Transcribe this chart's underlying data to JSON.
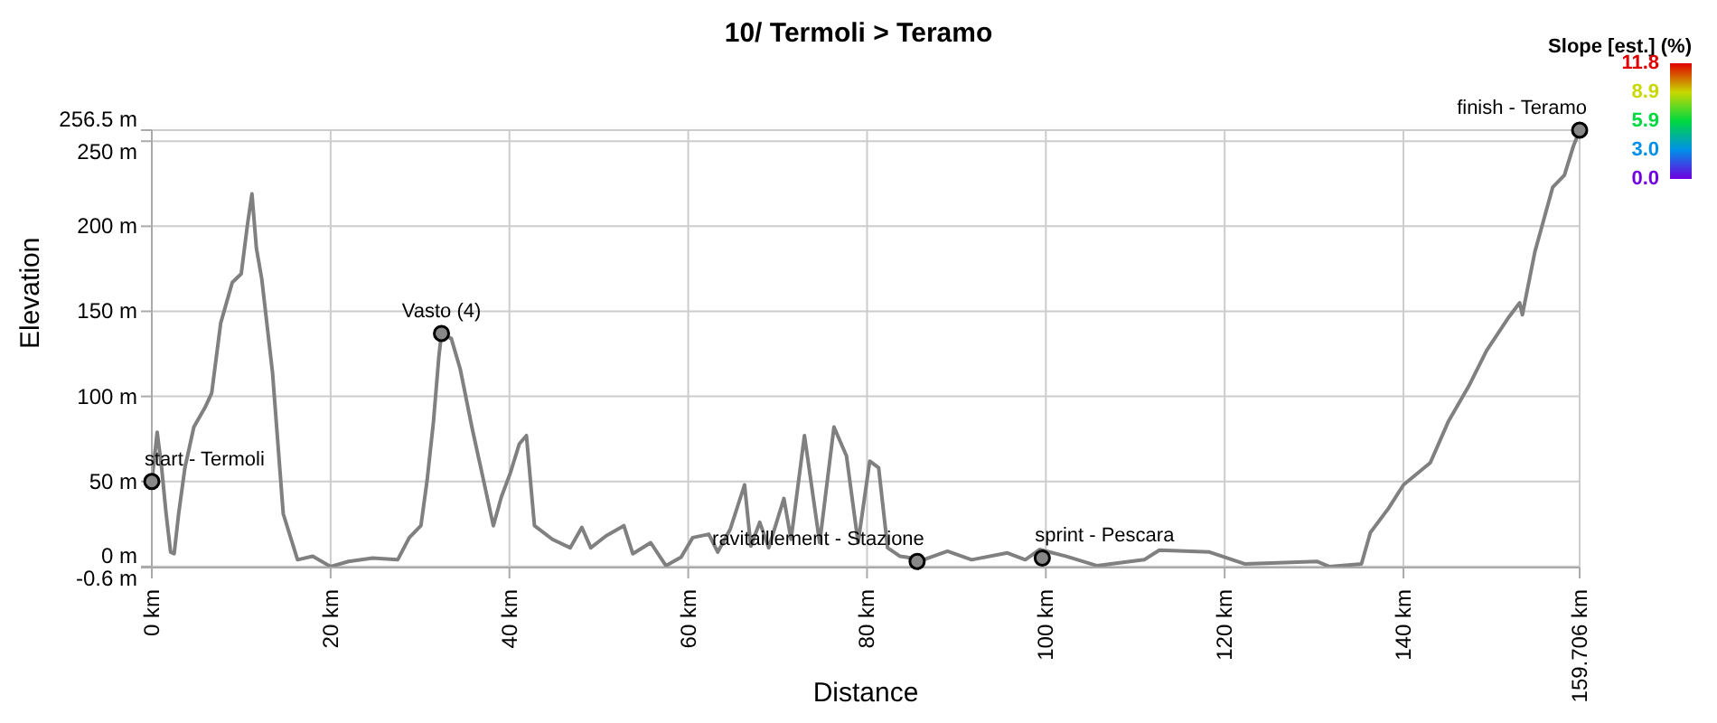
{
  "chart_data": {
    "type": "line",
    "title": "10/ Termoli > Teramo",
    "xlabel": "Distance",
    "ylabel": "Elevation",
    "clabel": "Slope [est.] (%)",
    "clim": [
      0,
      11.8
    ],
    "cticks": [
      {
        "value": 11.8,
        "label": "11.8"
      },
      {
        "value": 8.9,
        "label": "8.9"
      },
      {
        "value": 5.9,
        "label": "5.9"
      },
      {
        "value": 3.0,
        "label": "3.0"
      },
      {
        "value": 0.0,
        "label": "0.0"
      }
    ],
    "xlim": [
      0,
      159.706
    ],
    "xticks": [
      {
        "value": 0,
        "label": "0 km"
      },
      {
        "value": 20,
        "label": "20 km"
      },
      {
        "value": 40,
        "label": "40 km"
      },
      {
        "value": 60,
        "label": "60 km"
      },
      {
        "value": 80,
        "label": "80 km"
      },
      {
        "value": 100,
        "label": "100 km"
      },
      {
        "value": 120,
        "label": "120 km"
      },
      {
        "value": 140,
        "label": "140 km"
      },
      {
        "value": 159.706,
        "label": "159.706 km"
      }
    ],
    "ylim": [
      -0.6,
      256.5
    ],
    "yticks": [
      {
        "value": -0.6,
        "label": "-0.6 m"
      },
      {
        "value": 0,
        "label": "0 m"
      },
      {
        "value": 50,
        "label": "50 m"
      },
      {
        "value": 100,
        "label": "100 m"
      },
      {
        "value": 150,
        "label": "150 m"
      },
      {
        "value": 200,
        "label": "200 m"
      },
      {
        "value": 250,
        "label": "250 m"
      },
      {
        "value": 256.5,
        "label": "256.5 m"
      }
    ],
    "grid": true,
    "legend": false,
    "marker": "none",
    "line_style": "solid",
    "x": [
      0,
      0.6,
      1.1,
      1.6,
      2.1,
      2.5,
      3.0,
      3.7,
      4.7,
      6.0,
      6.7,
      7.7,
      9.0,
      10.0,
      10.7,
      11.2,
      11.7,
      12.3,
      13.5,
      14.7,
      16.3,
      18,
      20,
      22,
      24.7,
      27.5,
      28.8,
      30.1,
      30.8,
      31.5,
      32.1,
      32.4,
      33.5,
      34.5,
      35.8,
      36.8,
      38.2,
      39.1,
      40.1,
      41.1,
      41.9,
      42.8,
      44.8,
      46.8,
      48.1,
      49.1,
      50.8,
      52.8,
      53.8,
      55.8,
      57.5,
      59.2,
      60.5,
      62.3,
      63.3,
      64.7,
      66.3,
      67,
      68,
      69,
      70.7,
      71.5,
      73,
      74.7,
      76.3,
      77.7,
      79,
      80.3,
      81.3,
      82.3,
      83.7,
      86.3,
      89,
      91.7,
      95.7,
      97.7,
      99.3,
      102.3,
      105.7,
      111,
      112.7,
      118.3,
      122.3,
      130.3,
      131.7,
      135.3,
      136.3,
      138.3,
      140,
      143,
      145,
      147.3,
      149.3,
      151.7,
      153,
      153.3,
      154.7,
      156.7,
      158,
      159,
      159.706
    ],
    "series": [
      {
        "color": "#808080",
        "values": [
          50,
          79,
          58,
          31,
          8.5,
          7.6,
          31,
          58,
          82,
          94,
          102,
          143,
          167,
          172,
          201,
          219,
          187,
          169,
          114,
          31,
          4,
          6,
          0,
          3,
          5,
          4,
          17,
          24,
          51,
          85,
          123,
          137,
          134,
          116,
          82,
          58,
          24,
          41,
          55,
          72,
          77,
          24,
          16,
          11,
          23,
          11,
          18,
          24,
          7.5,
          14,
          0.5,
          5.5,
          17,
          19,
          8.5,
          22,
          48,
          12,
          26,
          11,
          40,
          16,
          77,
          14,
          82,
          65,
          14,
          62,
          58,
          11,
          6,
          4,
          9,
          4,
          8,
          4,
          10,
          6,
          0.5,
          4,
          9.6,
          8.5,
          1.5,
          3,
          0,
          1.5,
          20,
          34,
          48,
          61,
          85,
          106,
          127,
          146,
          155,
          148,
          185,
          223,
          230,
          247,
          256.5
        ]
      }
    ],
    "annotations": [
      {
        "text": "start - Termoli",
        "x": 0,
        "y": 50
      },
      {
        "text": "Vasto (4)",
        "x": 32.4,
        "y": 137
      },
      {
        "text": "ravitaillement - Stazione",
        "x": 85.6,
        "y": 3
      },
      {
        "text": "sprint - Pescara",
        "x": 99.6,
        "y": 5
      },
      {
        "text": "finish - Teramo",
        "x": 159.706,
        "y": 256.5
      }
    ]
  }
}
